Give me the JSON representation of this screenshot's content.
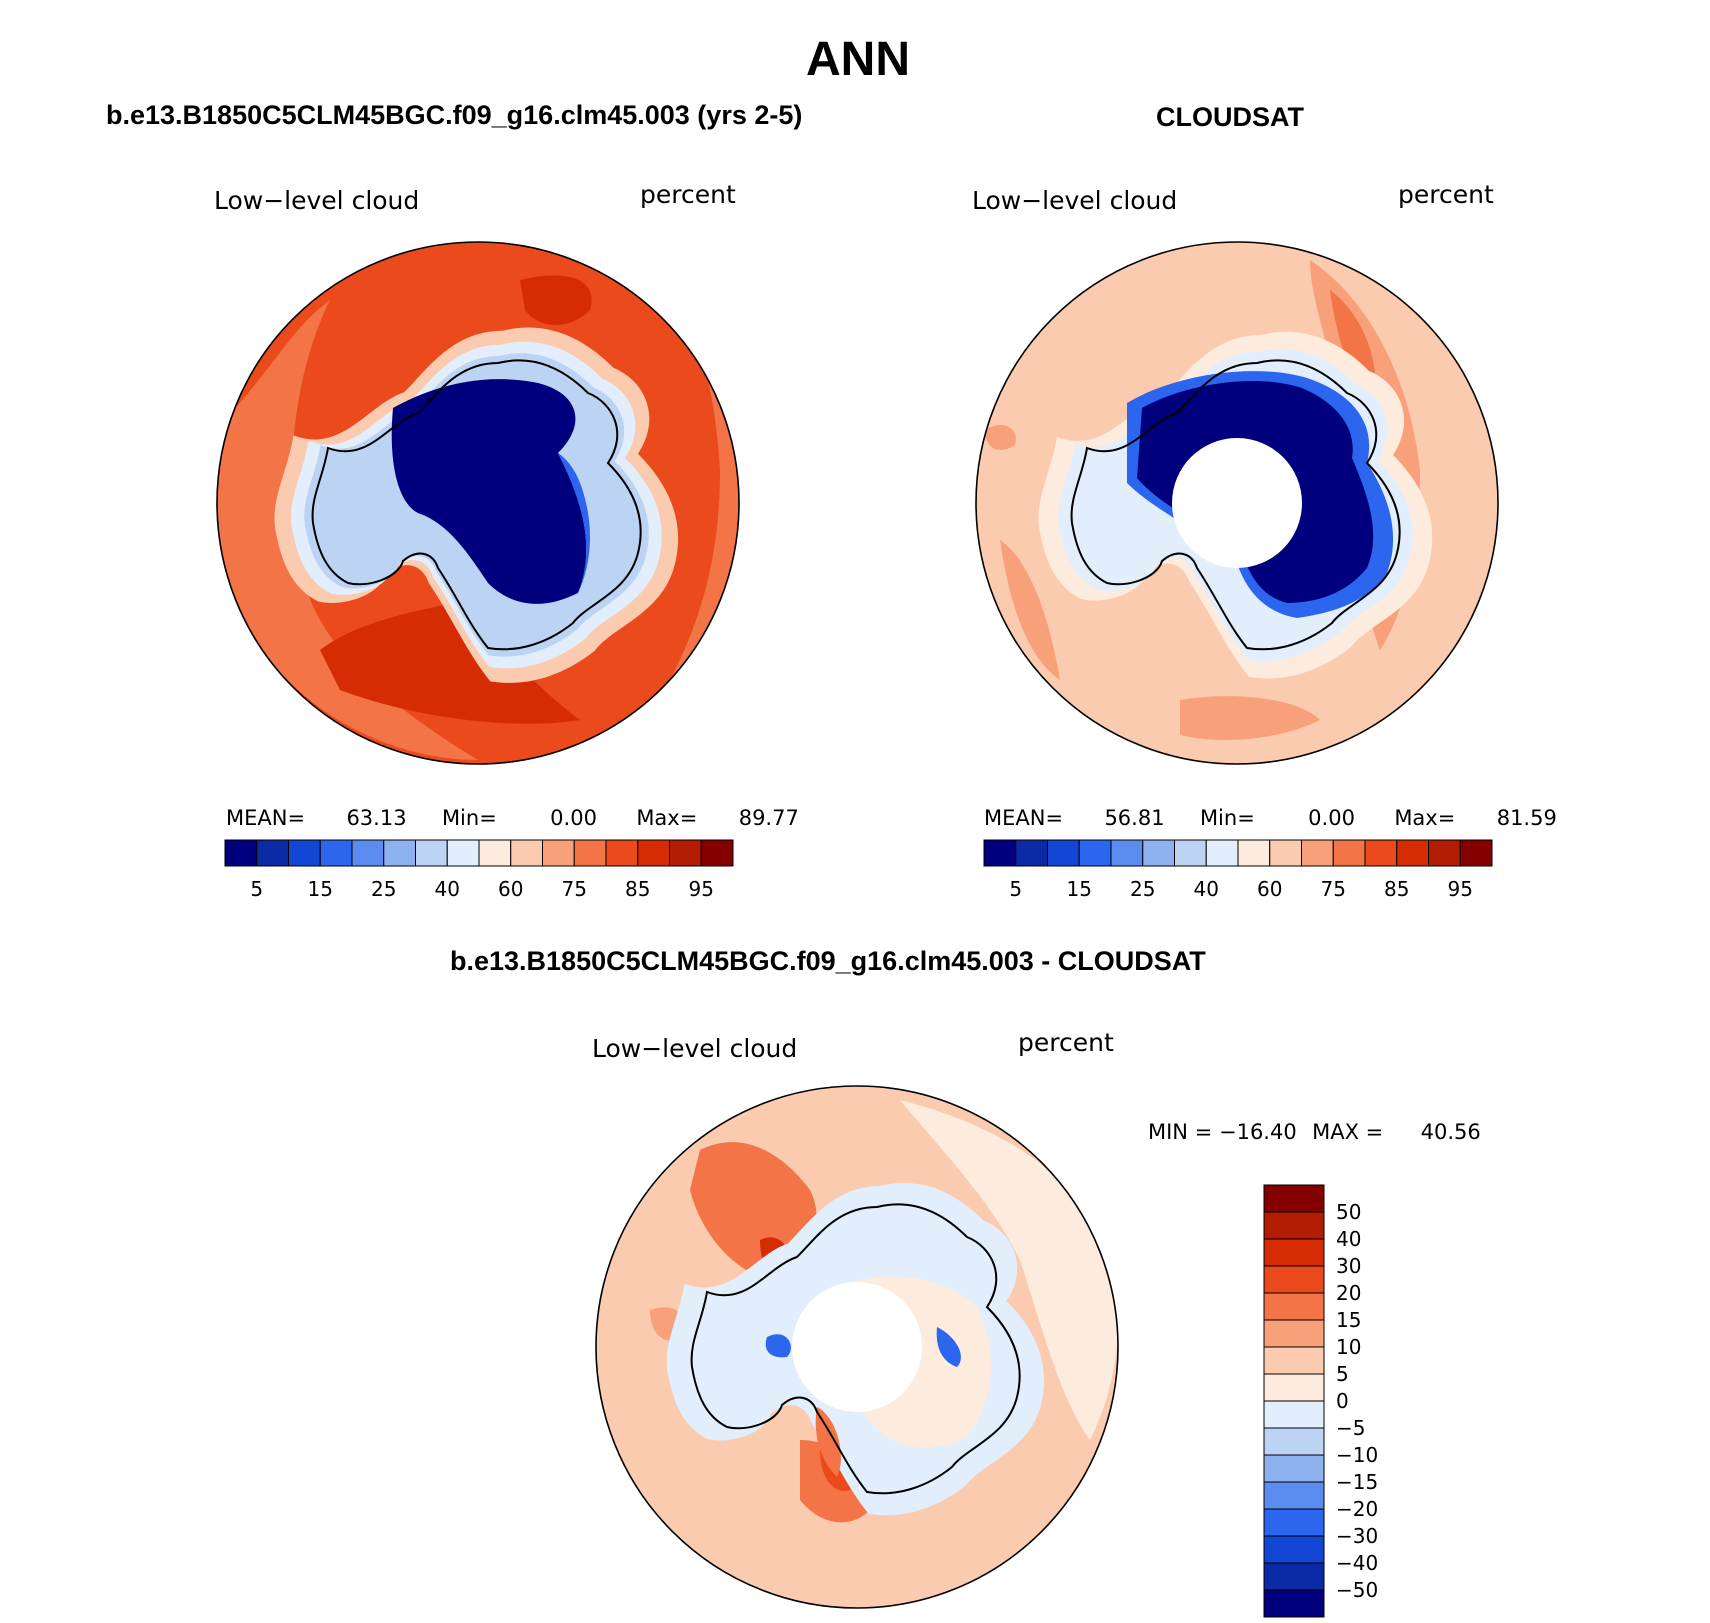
{
  "main_title": "ANN",
  "colors": {
    "scale": [
      "#00007f",
      "#0a2aa6",
      "#1446d6",
      "#2d66ee",
      "#5b8cf0",
      "#8eb1f0",
      "#bcd3f4",
      "#e2eefb",
      "#fdebde",
      "#fbcbb0",
      "#f7a07a",
      "#f27447",
      "#ea4a1c",
      "#d52c04",
      "#b21c00",
      "#840000"
    ],
    "diff_scale": [
      "#00007f",
      "#0a2aa6",
      "#1446d6",
      "#2d66ee",
      "#5b8cf0",
      "#8eb1f0",
      "#bcd3f4",
      "#e2eefb",
      "#fdebde",
      "#fbcbb0",
      "#f7a07a",
      "#f27447",
      "#ea4a1c",
      "#d52c04",
      "#b21c00",
      "#840000"
    ],
    "coast": "#000000"
  },
  "panels": {
    "model": {
      "title": "b.e13.B1850C5CLM45BGC.f09_g16.clm45.003 (yrs 2-5)",
      "variable": "Low−level cloud",
      "units": "percent",
      "stats": {
        "mean_label": "MEAN=",
        "mean": "63.13",
        "min_label": "Min=",
        "min": "0.00",
        "max_label": "Max=",
        "max": "89.77"
      },
      "colorbar_labels": [
        "5",
        "15",
        "25",
        "40",
        "60",
        "75",
        "85",
        "95"
      ]
    },
    "obs": {
      "title": "CLOUDSAT",
      "variable": "Low−level cloud",
      "units": "percent",
      "stats": {
        "mean_label": "MEAN=",
        "mean": "56.81",
        "min_label": "Min=",
        "min": "0.00",
        "max_label": "Max=",
        "max": "81.59"
      },
      "colorbar_labels": [
        "5",
        "15",
        "25",
        "40",
        "60",
        "75",
        "85",
        "95"
      ]
    },
    "diff": {
      "title": "b.e13.B1850C5CLM45BGC.f09_g16.clm45.003 - CLOUDSAT",
      "variable": "Low−level cloud",
      "units": "percent",
      "stats": {
        "min_label": "MIN =",
        "min": "−16.40",
        "max_label": "MAX =",
        "max": "40.56"
      },
      "colorbar_labels": [
        "50",
        "40",
        "30",
        "20",
        "15",
        "10",
        "5",
        "0",
        "−5",
        "−10",
        "−15",
        "−20",
        "−30",
        "−40",
        "−50"
      ]
    }
  }
}
